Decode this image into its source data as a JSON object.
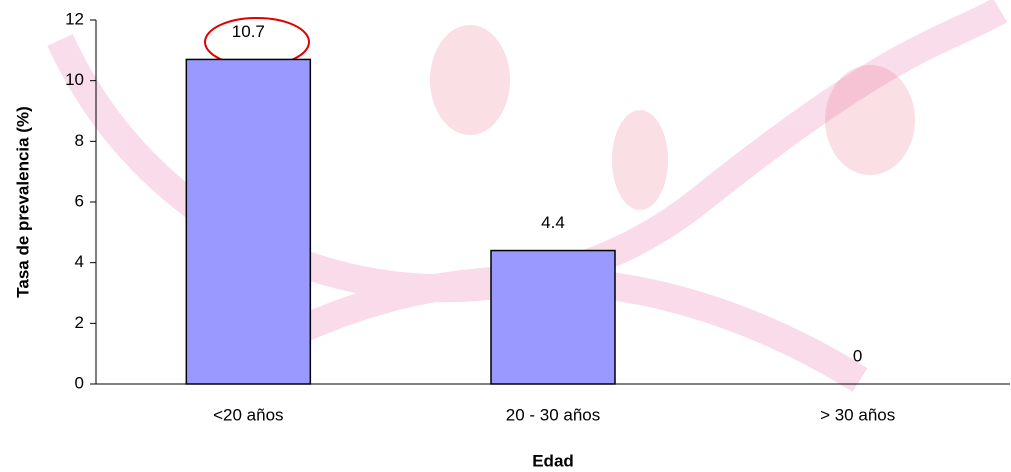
{
  "chart_data": {
    "type": "bar",
    "x_label": "Edad",
    "y_label": "Tasa de prevalencia (%)",
    "categories": [
      "<20 años",
      "20 - 30 años",
      "> 30 años"
    ],
    "values": [
      10.7,
      4.4,
      0
    ],
    "color": "#9999ff",
    "ylim": [
      0,
      12
    ],
    "yticks": [
      0,
      2,
      4,
      6,
      8,
      10,
      12
    ],
    "grid": false
  }
}
